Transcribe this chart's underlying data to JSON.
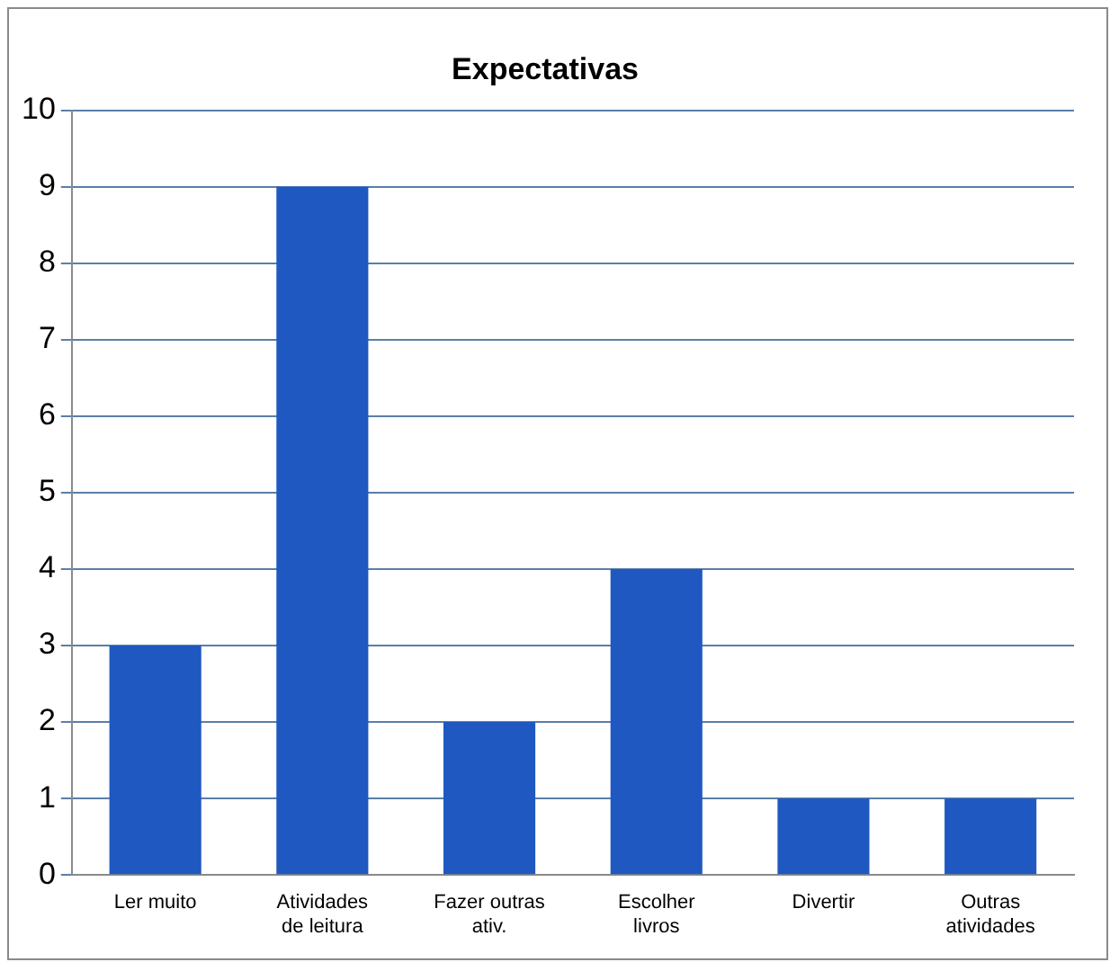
{
  "chart_data": {
    "type": "bar",
    "title": "Expectativas",
    "categories": [
      "Ler muito",
      "Atividades de leitura",
      "Fazer outras ativ.",
      "Escolher livros",
      "Divertir",
      "Outras atividades"
    ],
    "values": [
      3,
      9,
      2,
      4,
      1,
      1
    ],
    "color": "#1f58c0",
    "ylim": [
      0,
      10
    ],
    "yticks": [
      0,
      1,
      2,
      3,
      4,
      5,
      6,
      7,
      8,
      9,
      10
    ],
    "grid": "y",
    "legend": false
  }
}
